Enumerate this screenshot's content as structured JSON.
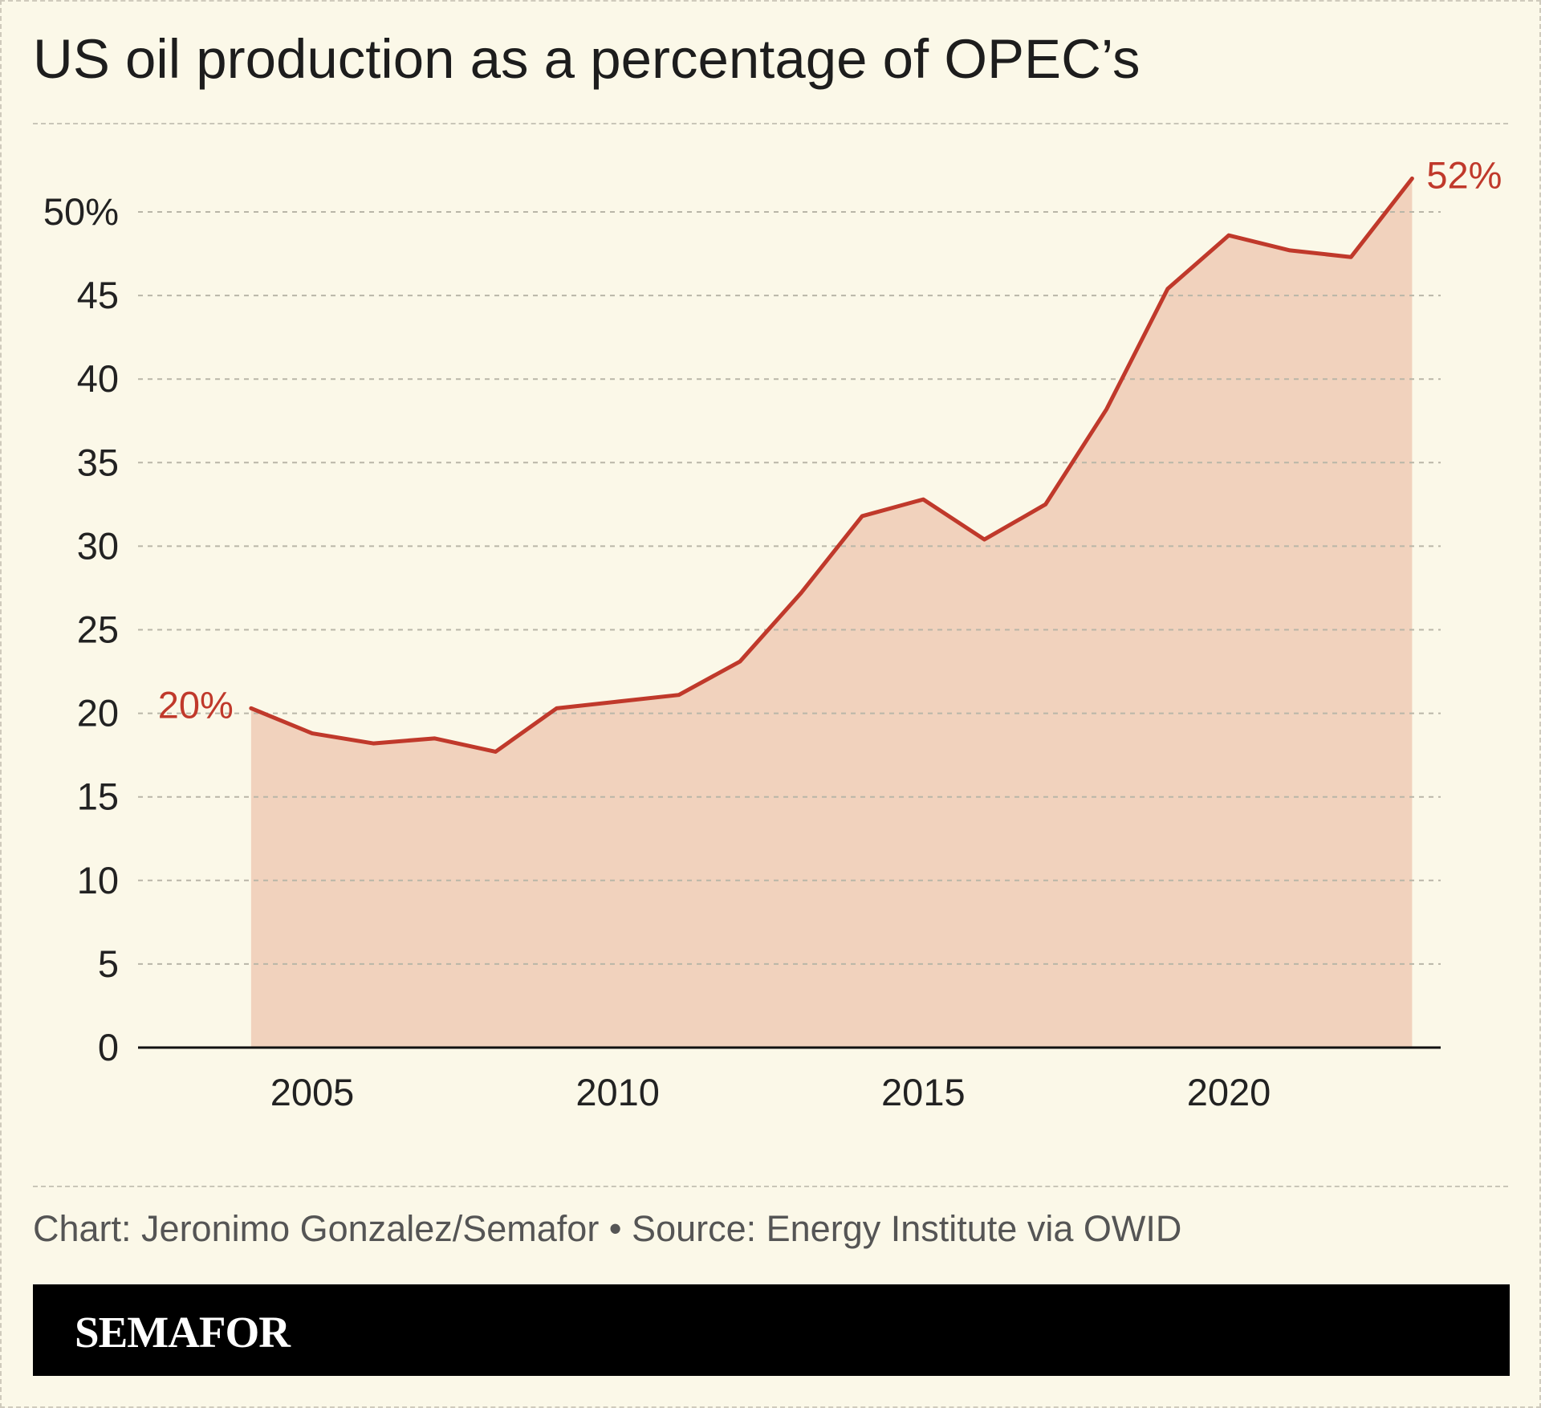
{
  "title": "US oil production as a percentage of OPEC’s",
  "credit": "Chart: Jeronimo Gonzalez/Semafor • Source: Energy Institute via OWID",
  "brand": "SEMAFOR",
  "colors": {
    "background": "#fbf8e8",
    "line": "#c0392b",
    "area": "#f1d2bd",
    "annotation": "#c0392b"
  },
  "chart_data": {
    "type": "area",
    "x": [
      2004,
      2005,
      2006,
      2007,
      2008,
      2009,
      2010,
      2011,
      2012,
      2013,
      2014,
      2015,
      2016,
      2017,
      2018,
      2019,
      2020,
      2021,
      2022,
      2023
    ],
    "series": [
      {
        "values": [
          20.3,
          18.8,
          18.2,
          18.5,
          17.7,
          20.3,
          20.7,
          21.1,
          23.1,
          27.2,
          31.8,
          32.8,
          30.4,
          32.5,
          38.2,
          45.4,
          48.6,
          47.7,
          47.3,
          52.0
        ]
      }
    ],
    "ylim": [
      0,
      52
    ],
    "yticks": [
      0,
      5,
      10,
      15,
      20,
      25,
      30,
      35,
      40,
      45,
      50
    ],
    "ytick_labels": [
      "0",
      "5",
      "10",
      "15",
      "20",
      "25",
      "30",
      "35",
      "40",
      "45",
      "50%"
    ],
    "xticks": [
      2005,
      2010,
      2015,
      2020
    ],
    "xtick_labels": [
      "2005",
      "2010",
      "2015",
      "2020"
    ],
    "annotations": [
      {
        "x": 2004,
        "y": 20.3,
        "text": "20%"
      },
      {
        "x": 2023,
        "y": 52.0,
        "text": "52%"
      }
    ],
    "grid": true,
    "xlabel": "",
    "ylabel": ""
  }
}
